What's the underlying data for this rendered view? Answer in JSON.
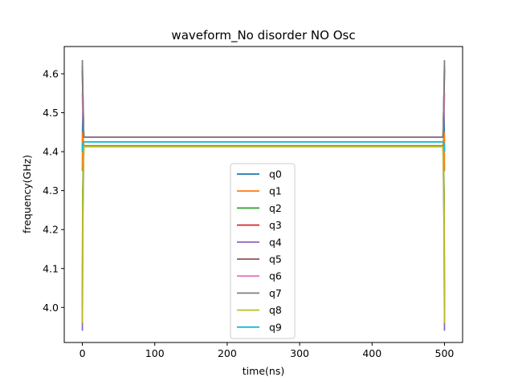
{
  "chart_data": {
    "type": "line",
    "title": "waveform_No disorder NO Osc",
    "xlabel": "time(ns)",
    "ylabel": "frequency(GHz)",
    "xlim": [
      -25,
      525
    ],
    "ylim": [
      3.91,
      4.67
    ],
    "xticks": [
      0,
      100,
      200,
      300,
      400,
      500
    ],
    "yticks": [
      4.0,
      4.1,
      4.2,
      4.3,
      4.4,
      4.5,
      4.6
    ],
    "xtick_labels": [
      "0",
      "100",
      "200",
      "300",
      "400",
      "500"
    ],
    "ytick_labels": [
      "4.0",
      "4.1",
      "4.2",
      "4.3",
      "4.4",
      "4.5",
      "4.6"
    ],
    "legend_position": "lower center",
    "series": [
      {
        "name": "q0",
        "color": "#1f77b4",
        "x": [
          0,
          0.5,
          2,
          498,
          499.5,
          500
        ],
        "y": [
          4.4,
          4.5,
          4.437,
          4.437,
          4.5,
          4.4
        ]
      },
      {
        "name": "q1",
        "color": "#ff7f0e",
        "x": [
          0,
          0.5,
          2,
          498,
          499.5,
          500
        ],
        "y": [
          4.35,
          4.45,
          4.415,
          4.415,
          4.45,
          4.35
        ]
      },
      {
        "name": "q2",
        "color": "#2ca02c",
        "x": [
          0,
          0.5,
          2,
          498,
          499.5,
          500
        ],
        "y": [
          4.0,
          4.3,
          4.413,
          4.413,
          4.3,
          4.0
        ]
      },
      {
        "name": "q3",
        "color": "#d62728",
        "x": [
          0,
          0.5,
          2,
          498,
          499.5,
          500
        ],
        "y": [
          4.61,
          4.55,
          4.437,
          4.437,
          4.55,
          4.61
        ]
      },
      {
        "name": "q4",
        "color": "#9467bd",
        "x": [
          0,
          0.5,
          2,
          498,
          499.5,
          500
        ],
        "y": [
          3.94,
          4.2,
          4.415,
          4.415,
          4.2,
          3.94
        ]
      },
      {
        "name": "q5",
        "color": "#8c564b",
        "x": [
          0,
          0.5,
          2,
          498,
          499.5,
          500
        ],
        "y": [
          4.62,
          4.56,
          4.437,
          4.437,
          4.56,
          4.62
        ]
      },
      {
        "name": "q6",
        "color": "#e377c2",
        "x": [
          0,
          0.5,
          2,
          498,
          499.5,
          500
        ],
        "y": [
          4.55,
          4.5,
          4.437,
          4.437,
          4.5,
          4.55
        ]
      },
      {
        "name": "q7",
        "color": "#7f7f7f",
        "x": [
          0,
          0.5,
          2,
          498,
          499.5,
          500
        ],
        "y": [
          4.635,
          4.57,
          4.437,
          4.437,
          4.57,
          4.635
        ]
      },
      {
        "name": "q8",
        "color": "#bcbd22",
        "x": [
          0,
          0.5,
          2,
          498,
          499.5,
          500
        ],
        "y": [
          3.96,
          4.25,
          4.413,
          4.413,
          4.25,
          3.96
        ]
      },
      {
        "name": "q9",
        "color": "#17becf",
        "x": [
          0,
          0.5,
          2,
          498,
          499.5,
          500
        ],
        "y": [
          4.4,
          4.42,
          4.425,
          4.425,
          4.42,
          4.4
        ]
      }
    ]
  }
}
